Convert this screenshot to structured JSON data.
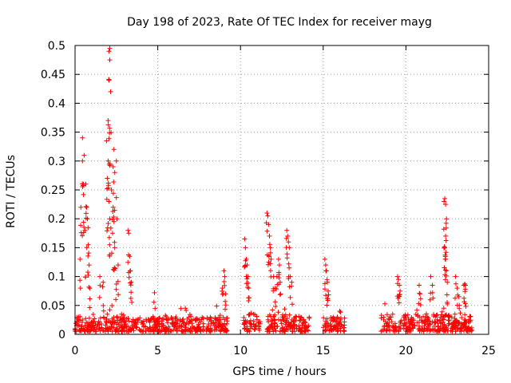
{
  "chart_data": {
    "type": "scatter",
    "title": "Day 198 of 2023, Rate Of TEC Index for receiver mayg",
    "xlabel": "GPS time / hours",
    "ylabel": "ROTI / TECUs",
    "xlim": [
      0,
      25
    ],
    "ylim": [
      0,
      0.5
    ],
    "xticks": [
      0,
      5,
      10,
      15,
      20,
      25
    ],
    "xtick_labels": [
      "0",
      "5",
      "10",
      "15",
      "20",
      "25"
    ],
    "yticks": [
      0,
      0.05,
      0.1,
      0.15,
      0.2,
      0.25,
      0.3,
      0.35,
      0.4,
      0.45,
      0.5
    ],
    "ytick_labels": [
      "0",
      "0.05",
      "0.1",
      "0.15",
      "0.2",
      "0.25",
      "0.3",
      "0.35",
      "0.4",
      "0.45",
      "0.5"
    ],
    "grid": true,
    "marker": "+",
    "marker_color": "#ff0000",
    "series": [
      {
        "name": "ROTI",
        "baseline_segments": [
          {
            "x_start": 0.0,
            "x_end": 9.2,
            "low": 0.005,
            "high": 0.03
          },
          {
            "x_start": 10.2,
            "x_end": 11.2,
            "low": 0.005,
            "high": 0.035
          },
          {
            "x_start": 11.6,
            "x_end": 13.4,
            "low": 0.005,
            "high": 0.035
          },
          {
            "x_start": 13.5,
            "x_end": 14.2,
            "low": 0.005,
            "high": 0.03
          },
          {
            "x_start": 15.0,
            "x_end": 16.3,
            "low": 0.005,
            "high": 0.03
          },
          {
            "x_start": 18.5,
            "x_end": 24.0,
            "low": 0.005,
            "high": 0.035
          }
        ],
        "spikes": [
          {
            "x": 0.3,
            "y": 0.13
          },
          {
            "x": 0.35,
            "y": 0.22
          },
          {
            "x": 0.45,
            "y": 0.34
          },
          {
            "x": 0.45,
            "y": 0.3
          },
          {
            "x": 0.5,
            "y": 0.26
          },
          {
            "x": 0.55,
            "y": 0.31
          },
          {
            "x": 0.6,
            "y": 0.18
          },
          {
            "x": 0.65,
            "y": 0.26
          },
          {
            "x": 0.7,
            "y": 0.22
          },
          {
            "x": 0.75,
            "y": 0.2
          },
          {
            "x": 0.8,
            "y": 0.155
          },
          {
            "x": 0.85,
            "y": 0.12
          },
          {
            "x": 0.9,
            "y": 0.08
          },
          {
            "x": 1.5,
            "y": 0.1
          },
          {
            "x": 1.7,
            "y": 0.09
          },
          {
            "x": 1.9,
            "y": 0.335
          },
          {
            "x": 1.95,
            "y": 0.27
          },
          {
            "x": 2.0,
            "y": 0.37
          },
          {
            "x": 2.05,
            "y": 0.44
          },
          {
            "x": 2.05,
            "y": 0.49
          },
          {
            "x": 2.1,
            "y": 0.495
          },
          {
            "x": 2.1,
            "y": 0.475
          },
          {
            "x": 2.15,
            "y": 0.42
          },
          {
            "x": 2.0,
            "y": 0.3
          },
          {
            "x": 2.05,
            "y": 0.23
          },
          {
            "x": 2.1,
            "y": 0.2
          },
          {
            "x": 2.2,
            "y": 0.25
          },
          {
            "x": 2.3,
            "y": 0.29
          },
          {
            "x": 2.35,
            "y": 0.32
          },
          {
            "x": 2.4,
            "y": 0.28
          },
          {
            "x": 2.3,
            "y": 0.22
          },
          {
            "x": 2.35,
            "y": 0.195
          },
          {
            "x": 2.4,
            "y": 0.15
          },
          {
            "x": 2.5,
            "y": 0.3
          },
          {
            "x": 2.6,
            "y": 0.12
          },
          {
            "x": 2.5,
            "y": 0.087
          },
          {
            "x": 3.2,
            "y": 0.18
          },
          {
            "x": 3.25,
            "y": 0.175
          },
          {
            "x": 3.3,
            "y": 0.135
          },
          {
            "x": 3.35,
            "y": 0.11
          },
          {
            "x": 3.4,
            "y": 0.09
          },
          {
            "x": 4.8,
            "y": 0.072
          },
          {
            "x": 8.9,
            "y": 0.08
          },
          {
            "x": 9.0,
            "y": 0.11
          },
          {
            "x": 9.05,
            "y": 0.1
          },
          {
            "x": 9.1,
            "y": 0.07
          },
          {
            "x": 10.25,
            "y": 0.165
          },
          {
            "x": 10.3,
            "y": 0.15
          },
          {
            "x": 10.35,
            "y": 0.13
          },
          {
            "x": 10.4,
            "y": 0.12
          },
          {
            "x": 10.45,
            "y": 0.1
          },
          {
            "x": 10.5,
            "y": 0.08
          },
          {
            "x": 11.6,
            "y": 0.21
          },
          {
            "x": 11.65,
            "y": 0.205
          },
          {
            "x": 11.7,
            "y": 0.19
          },
          {
            "x": 11.75,
            "y": 0.17
          },
          {
            "x": 11.8,
            "y": 0.15
          },
          {
            "x": 11.85,
            "y": 0.13
          },
          {
            "x": 12.0,
            "y": 0.1
          },
          {
            "x": 12.1,
            "y": 0.08
          },
          {
            "x": 12.2,
            "y": 0.1
          },
          {
            "x": 12.3,
            "y": 0.13
          },
          {
            "x": 12.35,
            "y": 0.12
          },
          {
            "x": 12.4,
            "y": 0.09
          },
          {
            "x": 12.8,
            "y": 0.18
          },
          {
            "x": 12.85,
            "y": 0.17
          },
          {
            "x": 12.9,
            "y": 0.16
          },
          {
            "x": 12.95,
            "y": 0.15
          },
          {
            "x": 13.0,
            "y": 0.1
          },
          {
            "x": 13.1,
            "y": 0.09
          },
          {
            "x": 15.1,
            "y": 0.13
          },
          {
            "x": 15.15,
            "y": 0.12
          },
          {
            "x": 15.2,
            "y": 0.11
          },
          {
            "x": 15.25,
            "y": 0.09
          },
          {
            "x": 15.3,
            "y": 0.075
          },
          {
            "x": 19.5,
            "y": 0.1
          },
          {
            "x": 19.55,
            "y": 0.095
          },
          {
            "x": 19.6,
            "y": 0.085
          },
          {
            "x": 19.65,
            "y": 0.075
          },
          {
            "x": 20.8,
            "y": 0.085
          },
          {
            "x": 20.85,
            "y": 0.07
          },
          {
            "x": 21.5,
            "y": 0.1
          },
          {
            "x": 21.6,
            "y": 0.085
          },
          {
            "x": 22.3,
            "y": 0.23
          },
          {
            "x": 22.35,
            "y": 0.235
          },
          {
            "x": 22.4,
            "y": 0.225
          },
          {
            "x": 22.45,
            "y": 0.2
          },
          {
            "x": 22.4,
            "y": 0.17
          },
          {
            "x": 22.35,
            "y": 0.15
          },
          {
            "x": 22.4,
            "y": 0.13
          },
          {
            "x": 22.45,
            "y": 0.11
          },
          {
            "x": 22.5,
            "y": 0.09
          },
          {
            "x": 23.0,
            "y": 0.1
          },
          {
            "x": 23.1,
            "y": 0.08
          },
          {
            "x": 23.2,
            "y": 0.065
          },
          {
            "x": 23.5,
            "y": 0.085
          },
          {
            "x": 23.55,
            "y": 0.087
          },
          {
            "x": 23.6,
            "y": 0.085
          }
        ]
      }
    ]
  }
}
